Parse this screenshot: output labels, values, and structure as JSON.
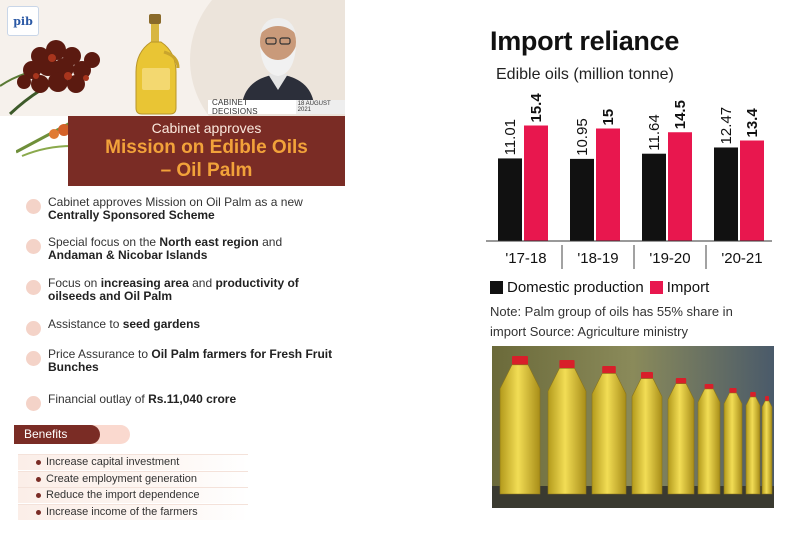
{
  "left_panel": {
    "logo_text": "pib",
    "cabinet_decisions_label": "CABINET DECISIONS",
    "date_label": "18 AUGUST 2021",
    "title_line1": "Cabinet approves",
    "title_line2": "Mission on Edible Oils",
    "title_line3": "– Oil Palm",
    "points": [
      {
        "pre": "Cabinet approves Mission on Oil Palm as a new ",
        "bold": "Centrally Sponsored Scheme",
        "mid": "",
        "bold2": "",
        "post": ""
      },
      {
        "pre": "Special focus on the ",
        "bold": "North east region",
        "mid": " and ",
        "bold2": "Andaman & Nicobar Islands",
        "post": ""
      },
      {
        "pre": "Focus on ",
        "bold": "increasing area",
        "mid": " and ",
        "bold2": "productivity of oilseeds and Oil Palm",
        "post": ""
      },
      {
        "pre": "Assistance to ",
        "bold": "seed gardens",
        "mid": "",
        "bold2": "",
        "post": ""
      },
      {
        "pre": "Price Assurance to ",
        "bold": "Oil Palm farmers for Fresh Fruit Bunches",
        "mid": "",
        "bold2": "",
        "post": ""
      },
      {
        "pre": "Financial outlay of ",
        "bold": "Rs.11,040 crore",
        "mid": "",
        "bold2": "",
        "post": ""
      }
    ],
    "benefits_label": "Benefits",
    "benefits": [
      "Increase capital investment",
      "Create employment generation",
      "Reduce the import dependence",
      "Increase income of the farmers"
    ]
  },
  "colors": {
    "maroon": "#7a2c25",
    "orange": "#f2a23a",
    "domestic": "#111111",
    "import": "#e8174e"
  },
  "chart_data": {
    "type": "bar",
    "title": "Import reliance",
    "subtitle": "Edible oils (million tonne)",
    "categories": [
      "'17-18",
      "'18-19",
      "'19-20",
      "'20-21"
    ],
    "series": [
      {
        "name": "Domestic production",
        "values": [
          11.01,
          10.95,
          11.64,
          12.47
        ],
        "labels": [
          "11.01",
          "10.95",
          "11.64",
          "12.47"
        ]
      },
      {
        "name": "Import",
        "values": [
          15.4,
          15,
          14.5,
          13.4
        ],
        "labels": [
          "15.4",
          "15",
          "14.5",
          "13.4"
        ]
      }
    ],
    "ylim": [
      0,
      16
    ],
    "grid": false,
    "legend": "bottom-left",
    "note": "Note: Palm group of oils has 55% share in import Source: Agriculture ministry"
  }
}
